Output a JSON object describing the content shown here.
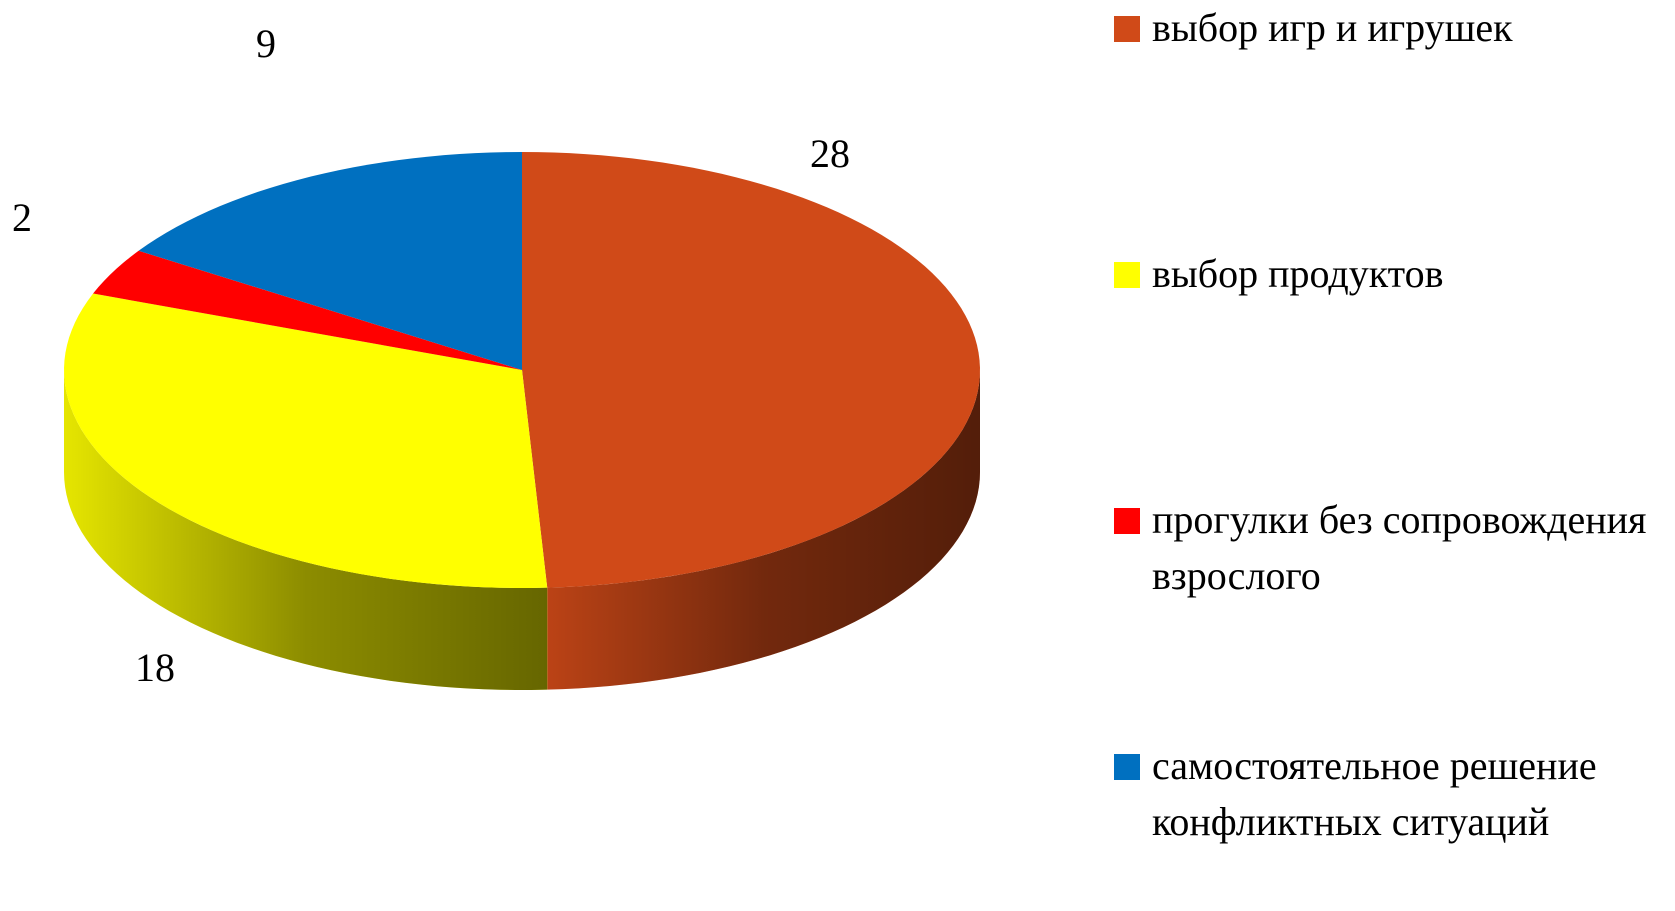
{
  "chart_data": {
    "type": "pie3d",
    "categories": [
      "выбор игр и игрушек",
      "выбор продуктов",
      "прогулки без сопровождения взрослого",
      "самостоятельное решение конфликтных ситуаций"
    ],
    "values": [
      28,
      18,
      2,
      9
    ],
    "colors": [
      "#d04a18",
      "#ffff00",
      "#ff0000",
      "#0070c0"
    ],
    "legend": "right"
  }
}
